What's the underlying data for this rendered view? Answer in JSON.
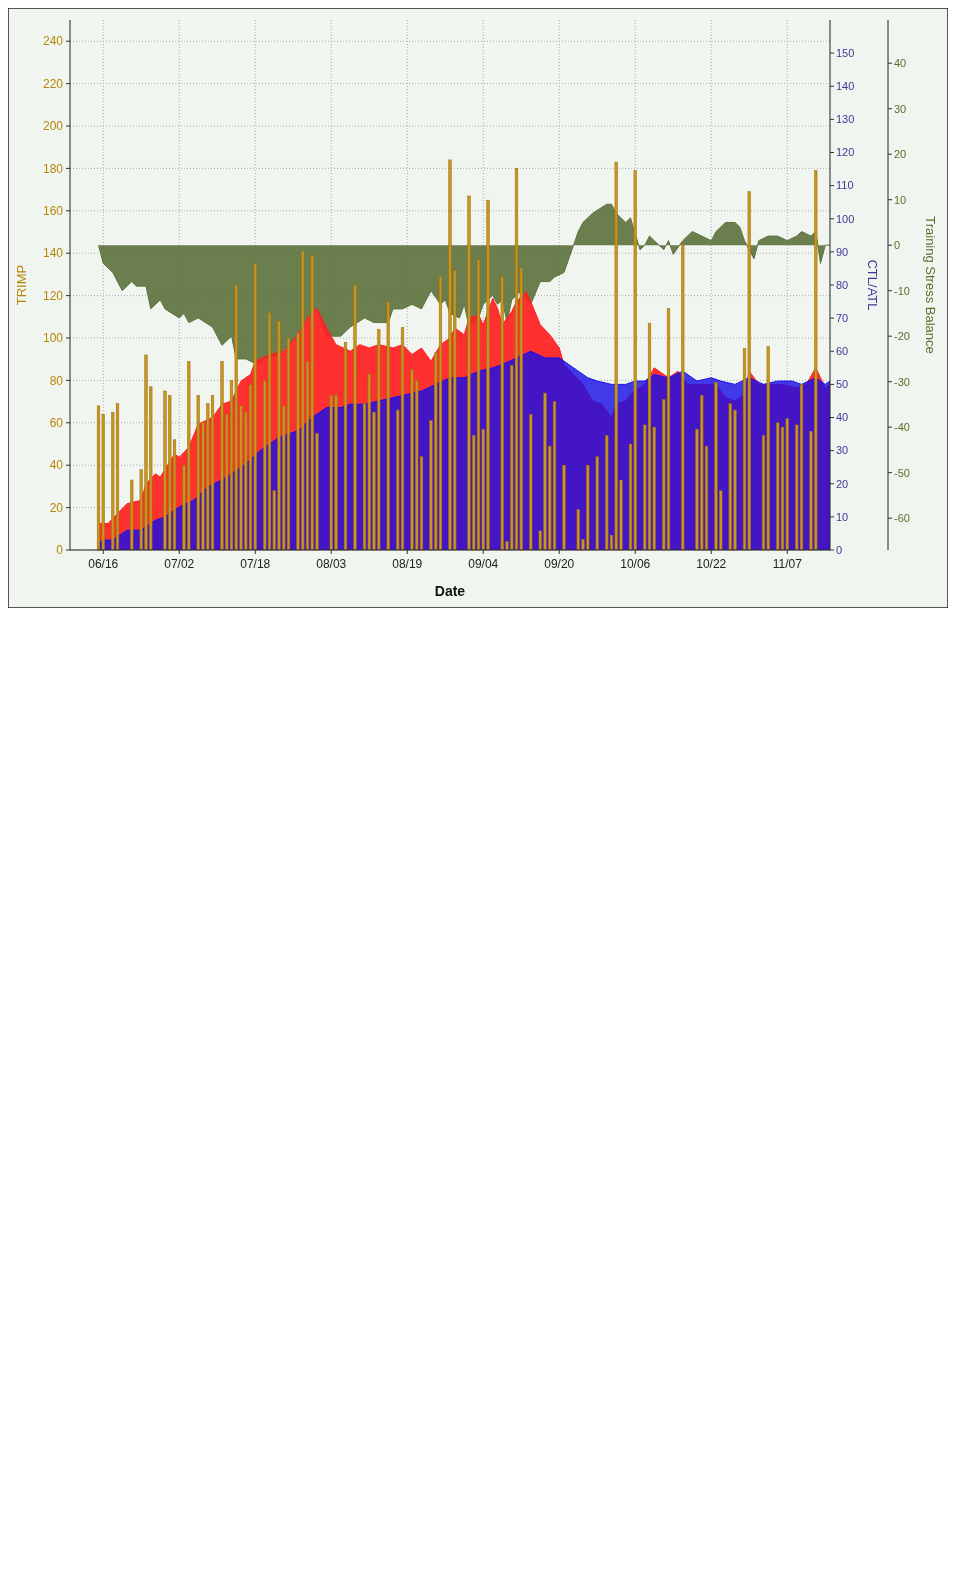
{
  "chart_data": {
    "type": "bar",
    "xlabel": "Date",
    "ylabel": "TRIMP",
    "y2label": "CTL/ATL",
    "y3label": "Training Stress Balance",
    "xlim": [
      "--06-09",
      "--11-16"
    ],
    "xticks": [
      {
        "value": "--06-16",
        "label": "06/16"
      },
      {
        "value": "--07-02",
        "label": "07/02"
      },
      {
        "value": "--07-18",
        "label": "07/18"
      },
      {
        "value": "--08-03",
        "label": "08/03"
      },
      {
        "value": "--08-19",
        "label": "08/19"
      },
      {
        "value": "--09-04",
        "label": "09/04"
      },
      {
        "value": "--09-20",
        "label": "09/20"
      },
      {
        "value": "--10-06",
        "label": "10/06"
      },
      {
        "value": "--10-22",
        "label": "10/22"
      },
      {
        "value": "--11-07",
        "label": "11/07"
      }
    ],
    "ylim": [
      0,
      250
    ],
    "yticks": [
      0,
      20,
      40,
      60,
      80,
      100,
      120,
      140,
      160,
      180,
      200,
      220,
      240
    ],
    "y2lim": [
      0,
      160
    ],
    "y2ticks": [
      0,
      10,
      20,
      30,
      40,
      50,
      60,
      70,
      80,
      90,
      100,
      110,
      120,
      130,
      140,
      150
    ],
    "y3lim": [
      -67,
      49.5
    ],
    "y3ticks": [
      -60,
      -50,
      -40,
      -30,
      -20,
      -10,
      0,
      10,
      20,
      30,
      40
    ],
    "grid": true,
    "series": [
      {
        "type": "area",
        "axis": "y3",
        "color": "#5f7340",
        "x": [
          "--06-15",
          "--06-16",
          "--06-18",
          "--06-20",
          "--06-22",
          "--06-23",
          "--06-25",
          "--06-26",
          "--06-28",
          "--06-29",
          "--07-02",
          "--07-03",
          "--07-04",
          "--07-06",
          "--07-09",
          "--07-11",
          "--07-13",
          "--07-14",
          "--07-16",
          "--07-18",
          "--07-19",
          "--07-20",
          "--07-23",
          "--07-26",
          "--07-29",
          "--07-31",
          "--08-02",
          "--08-05",
          "--08-06",
          "--08-07",
          "--08-10",
          "--08-12",
          "--08-15",
          "--08-16",
          "--08-18",
          "--08-20",
          "--08-22",
          "--08-24",
          "--08-26",
          "--08-27",
          "--08-28",
          "--08-30",
          "--08-31",
          "--09-01",
          "--09-03",
          "--09-04",
          "--09-06",
          "--09-07",
          "--09-08",
          "--09-09",
          "--09-10",
          "--09-12",
          "--09-14",
          "--09-16",
          "--09-18",
          "--09-19",
          "--09-21",
          "--09-23",
          "--09-24",
          "--09-25",
          "--09-27",
          "--09-30",
          "--10-01",
          "--10-02",
          "--10-04",
          "--10-05",
          "--10-07",
          "--10-08",
          "--10-09",
          "--10-10",
          "--10-12",
          "--10-13",
          "--10-14",
          "--10-16",
          "--10-18",
          "--10-20",
          "--10-22",
          "--10-23",
          "--10-25",
          "--10-27",
          "--10-28",
          "--10-29",
          "--10-31",
          "--11-01",
          "--11-03",
          "--11-05",
          "--11-07",
          "--11-09",
          "--11-10",
          "--11-12",
          "--11-13",
          "--11-14",
          "--11-15",
          "--11-16"
        ],
        "values": [
          0,
          -4,
          -6,
          -10,
          -8,
          -9,
          -9,
          -14,
          -12,
          -14,
          -16,
          -15,
          -17,
          -16,
          -18,
          -22,
          -20,
          -25,
          -25,
          -26,
          -26,
          -25,
          -24,
          -21,
          -16,
          -14,
          -20,
          -20,
          -19,
          -18,
          -16,
          -17,
          -17,
          -14,
          -14,
          -13,
          -14,
          -10,
          -13,
          -12,
          -15,
          -16,
          -13,
          -18,
          -16,
          -13,
          -11,
          -13,
          -12,
          -17,
          -12,
          -10,
          -13,
          -8,
          -8,
          -7,
          -6,
          0,
          3,
          5,
          7,
          9,
          9,
          7,
          5,
          6,
          -1,
          0,
          2,
          1,
          -1,
          1,
          -2,
          1,
          3,
          2,
          1,
          3,
          5,
          5,
          4,
          1,
          -3,
          1,
          2,
          2,
          1,
          2,
          3,
          2,
          3,
          -4,
          0,
          0
        ]
      },
      {
        "type": "area",
        "axis": "y2",
        "color": "#ff2020",
        "x": [
          "--06-15",
          "--06-17",
          "--06-19",
          "--06-21",
          "--06-24",
          "--06-25",
          "--06-27",
          "--06-28",
          "--07-01",
          "--07-02",
          "--07-04",
          "--07-06",
          "--07-09",
          "--07-11",
          "--07-13",
          "--07-15",
          "--07-17",
          "--07-18",
          "--07-21",
          "--07-24",
          "--07-27",
          "--07-29",
          "--07-31",
          "--08-02",
          "--08-04",
          "--08-07",
          "--08-09",
          "--08-11",
          "--08-13",
          "--08-16",
          "--08-18",
          "--08-20",
          "--08-22",
          "--08-24",
          "--08-26",
          "--08-28",
          "--08-29",
          "--08-31",
          "--09-01",
          "--09-03",
          "--09-04",
          "--09-06",
          "--09-07",
          "--09-08",
          "--09-10",
          "--09-11",
          "--09-13",
          "--09-14",
          "--09-16",
          "--09-18",
          "--09-20",
          "--09-21",
          "--09-23",
          "--09-25",
          "--09-27",
          "--09-29",
          "--10-01",
          "--10-02",
          "--10-04",
          "--10-05",
          "--10-07",
          "--10-08",
          "--10-10",
          "--10-13",
          "--10-15",
          "--10-17",
          "--10-20",
          "--10-23",
          "--10-25",
          "--10-27",
          "--10-29",
          "--10-30",
          "--11-01",
          "--11-03",
          "--11-06",
          "--11-09",
          "--11-11",
          "--11-13",
          "--11-15",
          "--11-16"
        ],
        "values": [
          8,
          8,
          11,
          14,
          15,
          20,
          23,
          22,
          29,
          28,
          31,
          38,
          40,
          44,
          45,
          51,
          53,
          57,
          59,
          60,
          65,
          70,
          73,
          67,
          62,
          60,
          62,
          61,
          62,
          61,
          62,
          59,
          61,
          57,
          62,
          64,
          67,
          65,
          70,
          71,
          68,
          76,
          73,
          68,
          72,
          75,
          78,
          75,
          68,
          65,
          61,
          56,
          53,
          50,
          45,
          44,
          40,
          44,
          45,
          47,
          49,
          50,
          55,
          52,
          54,
          50,
          50,
          50,
          46,
          45,
          47,
          54,
          50,
          50,
          50,
          49,
          50,
          55,
          49,
          50
        ]
      },
      {
        "type": "area",
        "axis": "y2",
        "color": "#1a10e6",
        "x": [
          "--06-15",
          "--06-16",
          "--06-18",
          "--06-21",
          "--06-24",
          "--06-27",
          "--06-29",
          "--07-02",
          "--07-05",
          "--07-08",
          "--07-12",
          "--07-16",
          "--07-19",
          "--07-23",
          "--07-27",
          "--07-30",
          "--08-02",
          "--08-05",
          "--08-07",
          "--08-10",
          "--08-13",
          "--08-16",
          "--08-19",
          "--08-22",
          "--08-25",
          "--08-28",
          "--08-31",
          "--09-03",
          "--09-06",
          "--09-08",
          "--09-11",
          "--09-14",
          "--09-17",
          "--09-20",
          "--09-22",
          "--09-24",
          "--09-26",
          "--09-28",
          "--10-01",
          "--10-04",
          "--10-06",
          "--10-08",
          "--10-10",
          "--10-13",
          "--10-16",
          "--10-19",
          "--10-22",
          "--10-24",
          "--10-27",
          "--10-30",
          "--11-02",
          "--11-05",
          "--11-08",
          "--11-10",
          "--11-13",
          "--11-15",
          "--11-16"
        ],
        "values": [
          2,
          3,
          3,
          6,
          6,
          9,
          10,
          13,
          15,
          19,
          22,
          26,
          30,
          34,
          36,
          40,
          43,
          43,
          44,
          44,
          45,
          46,
          47,
          48,
          50,
          52,
          52,
          54,
          55,
          56,
          58,
          60,
          58,
          58,
          56,
          54,
          52,
          51,
          50,
          50,
          51,
          51,
          53,
          52,
          54,
          51,
          52,
          51,
          50,
          52,
          50,
          51,
          51,
          50,
          52,
          50,
          51
        ]
      },
      {
        "axis": "y",
        "color": "#c8951e",
        "x": [
          "--06-15",
          "--06-16",
          "--06-18",
          "--06-19",
          "--06-22",
          "--06-24",
          "--06-25",
          "--06-26",
          "--06-29",
          "--06-30",
          "--07-01",
          "--07-03",
          "--07-04",
          "--07-06",
          "--07-07",
          "--07-08",
          "--07-09",
          "--07-11",
          "--07-12",
          "--07-13",
          "--07-14",
          "--07-15",
          "--07-16",
          "--07-17",
          "--07-18",
          "--07-20",
          "--07-21",
          "--07-22",
          "--07-23",
          "--07-24",
          "--07-25",
          "--07-27",
          "--07-28",
          "--07-29",
          "--07-30",
          "--07-31",
          "--08-03",
          "--08-04",
          "--08-06",
          "--08-08",
          "--08-10",
          "--08-11",
          "--08-12",
          "--08-13",
          "--08-15",
          "--08-17",
          "--08-18",
          "--08-20",
          "--08-21",
          "--08-22",
          "--08-24",
          "--08-25",
          "--08-26",
          "--08-28",
          "--08-29",
          "--09-01",
          "--09-02",
          "--09-03",
          "--09-04",
          "--09-05",
          "--09-08",
          "--09-09",
          "--09-10",
          "--09-11",
          "--09-12",
          "--09-14",
          "--09-16",
          "--09-17",
          "--09-18",
          "--09-19",
          "--09-21",
          "--09-24",
          "--09-25",
          "--09-26",
          "--09-28",
          "--09-30",
          "--10-01",
          "--10-02",
          "--10-03",
          "--10-05",
          "--10-06",
          "--10-08",
          "--10-09",
          "--10-10",
          "--10-12",
          "--10-13",
          "--10-16",
          "--10-19",
          "--10-20",
          "--10-21",
          "--10-23",
          "--10-24",
          "--10-26",
          "--10-27",
          "--10-29",
          "--10-30",
          "--11-02",
          "--11-03",
          "--11-05",
          "--11-06",
          "--11-07",
          "--11-09",
          "--11-10",
          "--11-12",
          "--11-13"
        ],
        "values": [
          68,
          64,
          65,
          69,
          33,
          38,
          92,
          77,
          75,
          73,
          52,
          40,
          89,
          73,
          60,
          69,
          73,
          89,
          64,
          80,
          125,
          68,
          65,
          78,
          135,
          80,
          112,
          28,
          108,
          68,
          100,
          102,
          141,
          89,
          139,
          55,
          73,
          73,
          98,
          125,
          69,
          83,
          65,
          104,
          117,
          66,
          105,
          85,
          80,
          44,
          61,
          93,
          129,
          184,
          132,
          167,
          54,
          137,
          57,
          165,
          129,
          4,
          87,
          180,
          133,
          64,
          9,
          74,
          49,
          70,
          40,
          19,
          5,
          40,
          44,
          54,
          7,
          183,
          33,
          50,
          179,
          59,
          107,
          58,
          71,
          114,
          144,
          57,
          73,
          49,
          79,
          28,
          69,
          66,
          95,
          169,
          54,
          96,
          60,
          58,
          62,
          59,
          78,
          56,
          179
        ]
      }
    ]
  }
}
